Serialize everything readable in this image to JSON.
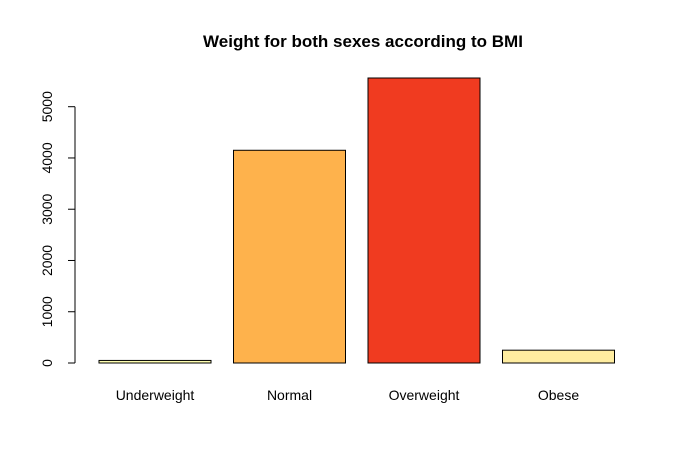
{
  "chart_data": {
    "type": "bar",
    "title": "Weight for both sexes according to BMI",
    "xlabel": "",
    "ylabel": "",
    "categories": [
      "Underweight",
      "Normal",
      "Overweight",
      "Obese"
    ],
    "values": [
      50,
      4150,
      5560,
      250
    ],
    "colors": [
      "#FFFFB2",
      "#FEB24C",
      "#F03B20",
      "#FFEDA0"
    ],
    "ylim": [
      0,
      5560
    ],
    "yticks": [
      0,
      1000,
      2000,
      3000,
      4000,
      5000
    ],
    "ytick_labels": [
      "0",
      "1000",
      "2000",
      "3000",
      "4000",
      "5000"
    ],
    "grid": false,
    "legend": "none"
  }
}
